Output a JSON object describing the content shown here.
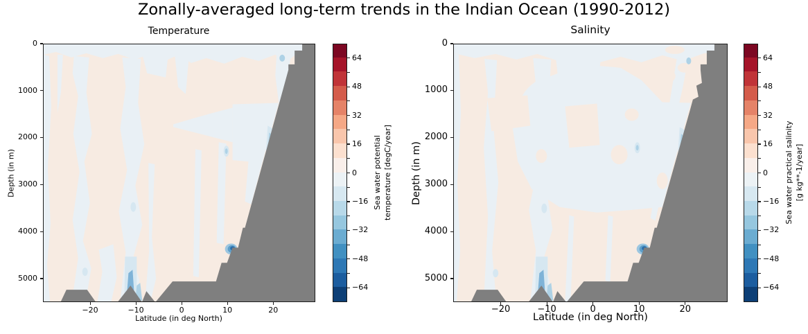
{
  "figure": {
    "title": "Zonally-averaged long-term trends in the Indian Ocean (1990-2012)",
    "background_color": "#ffffff",
    "land_mask_color": "#7f7f7f"
  },
  "panels": [
    {
      "id": "temperature",
      "title": "Temperature",
      "xlabel": "Latitude (in deg North)",
      "ylabel": "Depth (in m)",
      "x_ticks": [
        -20,
        -10,
        0,
        10,
        20
      ],
      "y_ticks": [
        0,
        1000,
        2000,
        3000,
        4000,
        5000
      ],
      "colorbar": {
        "label_lines": [
          "Sea water potential",
          "temperature [degC/year]"
        ],
        "tick_labels": [
          64,
          48,
          32,
          16,
          0,
          -16,
          -32,
          -48,
          -64
        ],
        "level_min": -72,
        "level_max": 72,
        "level_step": 8,
        "colors_bottom_to_top": [
          "#0d3f76",
          "#1c5d9f",
          "#2e78b5",
          "#4190c1",
          "#6bacd1",
          "#96c7df",
          "#b8d9e9",
          "#d7e8f1",
          "#ecf2f5",
          "#f9efea",
          "#fce0cf",
          "#f9c6ac",
          "#f5a886",
          "#e58368",
          "#d45c4b",
          "#c03438",
          "#a51429",
          "#7c0722"
        ]
      }
    },
    {
      "id": "salinity",
      "title": "Salinity",
      "xlabel": "Latitude (in deg North)",
      "ylabel": "Depth (in m)",
      "x_ticks": [
        -20,
        -10,
        0,
        10,
        20
      ],
      "y_ticks": [
        0,
        1000,
        2000,
        3000,
        4000,
        5000
      ],
      "colorbar": {
        "label_lines": [
          "Sea water practical salinity",
          "[g kg**-1/year]"
        ],
        "tick_labels": [
          64,
          48,
          32,
          16,
          0,
          -16,
          -32,
          -48,
          -64
        ],
        "level_min": -72,
        "level_max": 72,
        "level_step": 8,
        "colors_bottom_to_top": [
          "#0d3f76",
          "#1c5d9f",
          "#2e78b5",
          "#4190c1",
          "#6bacd1",
          "#96c7df",
          "#b8d9e9",
          "#d7e8f1",
          "#ecf2f5",
          "#f9efea",
          "#fce0cf",
          "#f9c6ac",
          "#f5a886",
          "#e58368",
          "#d45c4b",
          "#c03438",
          "#a51429",
          "#7c0722"
        ]
      }
    }
  ],
  "chart_data": [
    {
      "type": "heatmap",
      "subtype": "filled-contour-depth-section",
      "title": "Temperature",
      "xlabel": "Latitude (in deg North)",
      "ylabel": "Depth (in m)",
      "x_range": [
        -30.3,
        29.2
      ],
      "x_ticks": [
        -20,
        -10,
        0,
        10,
        20
      ],
      "y_range_m": [
        0,
        5500
      ],
      "y_ticks": [
        0,
        1000,
        2000,
        3000,
        4000,
        5000
      ],
      "y_axis_inverted": true,
      "colormap": "RdBu_r (discrete, 18 bins of 8 from -72 to +72)",
      "colorbar_label": "Sea water potential temperature [degC/year]",
      "colorbar_ticks": [
        64,
        48,
        32,
        16,
        0,
        -16,
        -32,
        -48,
        -64
      ],
      "value_range_plotted": "mostly within -8 to +8; localized minima near -40",
      "features": [
        {
          "region": "most of the interior section",
          "signal": "weak positive trend, 0 to +8 band (pale peach)"
        },
        {
          "region": "surface layer 0-200 m across all latitudes",
          "signal": "weak negative trend, -8 to 0 band (pale blue)"
        },
        {
          "region": "vertical bands near 30S, 27S, 24S-20S, 13S-9S, 5S",
          "signal": "weak negative trend columns reaching the bottom"
        },
        {
          "region": "tongue from 2S to 11N at 1500-2100 m joining block 11N-23N at 1200-2500 m",
          "signal": "weak negative trend"
        },
        {
          "region": "near 11.5N at ~4400 m against the continental slope",
          "signal": "localized strong negative trend (about -30 to -40)"
        },
        {
          "region": "near 11.5S below 4700 m",
          "signal": "localized moderate negative trend (about -16 to -24)"
        },
        {
          "region": "small negative spots: 22N ~300 m, 23N 1800-2400 m, 10N ~2300 m, 10.5S ~3500 m",
          "signal": "-16 to -8 band"
        },
        {
          "region": "north of ~24N and below the staircase sea floor rising from 5100 m at 6S to the surface at 27N; bumps near 26S and 12S-9S",
          "signal": "bathymetry / no data (gray mask #7f7f7f)"
        }
      ]
    },
    {
      "type": "heatmap",
      "subtype": "filled-contour-depth-section",
      "title": "Salinity",
      "xlabel": "Latitude (in deg North)",
      "ylabel": "Depth (in m)",
      "x_range": [
        -30.3,
        29.2
      ],
      "x_ticks": [
        -20,
        -10,
        0,
        10,
        20
      ],
      "y_range_m": [
        0,
        5500
      ],
      "y_ticks": [
        0,
        1000,
        2000,
        3000,
        4000,
        5000
      ],
      "y_axis_inverted": true,
      "colormap": "RdBu_r (discrete, 18 bins of 8 from -72 to +72)",
      "colorbar_label": "Sea water practical salinity [g kg**-1/year]",
      "colorbar_ticks": [
        64,
        48,
        32,
        16,
        0,
        -16,
        -32,
        -48,
        -64
      ],
      "value_range_plotted": "mostly within -8 to +8; localized minima near -40",
      "features": [
        {
          "region": "large central region from ~18S to the slope, ~500-3400 m",
          "signal": "weak negative trend, -8 to 0 band (pale blue) with embedded weak positive islands"
        },
        {
          "region": "surface layer 0-150 m",
          "signal": "weak negative trend with small positive patches near the northern slope"
        },
        {
          "region": "left portion above ~1000 m and most of the section below ~3400 m south of 0N",
          "signal": "weak positive trend, 0 to +8 band (pale peach)"
        },
        {
          "region": "vertical bands near 30S, 22S, 13S-9S reaching the bottom",
          "signal": "weak negative trend columns"
        },
        {
          "region": "near 11.5N at ~4400 m against the continental slope",
          "signal": "localized strong negative trend (about -30 to -40)"
        },
        {
          "region": "near 11.5S below 4700 m",
          "signal": "localized moderate negative trend (about -16 to -24)"
        },
        {
          "region": "same gray bathymetry mask as temperature panel (staircase slope to 27N, bumps near 26S and 12S-9S)",
          "signal": "bathymetry / no data (gray mask #7f7f7f)"
        }
      ]
    }
  ]
}
